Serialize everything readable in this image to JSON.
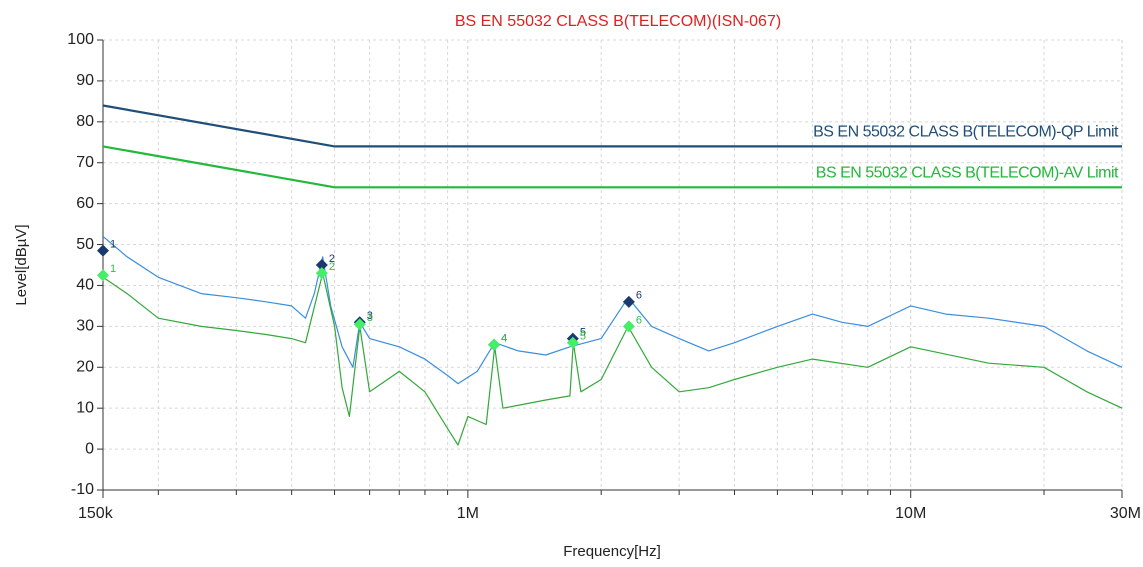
{
  "chart_data": {
    "type": "line",
    "title": "BS EN 55032 CLASS B(TELECOM)(ISN-067)",
    "xlabel": "Frequency[Hz]",
    "ylabel": "Level[dBµV]",
    "xscale": "log",
    "xlim": [
      150000,
      30000000
    ],
    "ylim": [
      -10,
      100
    ],
    "xticks": [
      {
        "value": 150000,
        "label": "150k"
      },
      {
        "value": 1000000,
        "label": "1M"
      },
      {
        "value": 10000000,
        "label": "10M"
      },
      {
        "value": 30000000,
        "label": "30M"
      }
    ],
    "x_minor_grid": [
      200000,
      300000,
      400000,
      500000,
      600000,
      700000,
      800000,
      900000,
      2000000,
      3000000,
      4000000,
      5000000,
      6000000,
      7000000,
      8000000,
      9000000,
      20000000
    ],
    "yticks": [
      -10,
      0,
      10,
      20,
      30,
      40,
      50,
      60,
      70,
      80,
      90,
      100
    ],
    "grid": true,
    "series": [
      {
        "name": "BS EN 55032 CLASS B(TELECOM)-QP Limit",
        "color": "#1f4e79",
        "width": 2.2,
        "x": [
          150000,
          500000,
          30000000
        ],
        "values": [
          84,
          74,
          74
        ]
      },
      {
        "name": "BS EN 55032 CLASS B(TELECOM)-AV Limit",
        "color": "#22b83a",
        "width": 2.2,
        "x": [
          150000,
          500000,
          30000000
        ],
        "values": [
          74,
          64,
          64
        ]
      },
      {
        "color": "#3a8ee0",
        "width": 1.2,
        "x": [
          150000,
          170000,
          200000,
          250000,
          300000,
          350000,
          400000,
          430000,
          450000,
          470000,
          490000,
          520000,
          550000,
          570000,
          600000,
          700000,
          800000,
          900000,
          950000,
          1050000,
          1150000,
          1300000,
          1500000,
          1700000,
          2000000,
          2300000,
          2600000,
          3000000,
          3500000,
          4000000,
          5000000,
          6000000,
          7000000,
          8000000,
          10000000,
          12000000,
          15000000,
          20000000,
          25000000,
          30000000
        ],
        "values": [
          52,
          47,
          42,
          38,
          37,
          36,
          35,
          32,
          38,
          47,
          35,
          25,
          20,
          31,
          27,
          25,
          22,
          18,
          16,
          19,
          26,
          24,
          23,
          25,
          27,
          37,
          30,
          27,
          24,
          26,
          30,
          33,
          31,
          30,
          35,
          33,
          32,
          30,
          24,
          20
        ]
      },
      {
        "color": "#33a83a",
        "width": 1.2,
        "x": [
          150000,
          170000,
          200000,
          250000,
          300000,
          350000,
          400000,
          430000,
          470000,
          500000,
          520000,
          540000,
          570000,
          600000,
          700000,
          800000,
          900000,
          950000,
          1000000,
          1100000,
          1150000,
          1200000,
          1500000,
          1700000,
          1730000,
          1800000,
          2000000,
          2300000,
          2600000,
          3000000,
          3500000,
          4000000,
          5000000,
          6000000,
          8000000,
          10000000,
          15000000,
          20000000,
          25000000,
          30000000
        ],
        "values": [
          42,
          38,
          32,
          30,
          29,
          28,
          27,
          26,
          43,
          30,
          15,
          8,
          30,
          14,
          19,
          14,
          5,
          1,
          8,
          6,
          25,
          10,
          12,
          13,
          26,
          14,
          17,
          30,
          20,
          14,
          15,
          17,
          20,
          22,
          20,
          25,
          21,
          20,
          14,
          10
        ]
      }
    ],
    "markers": {
      "labels": [
        "1",
        "2",
        "3",
        "4",
        "5",
        "6"
      ],
      "x": [
        150000,
        468000,
        570000,
        1146000,
        1726000,
        2310000
      ],
      "qp": [
        48.5,
        45,
        31,
        25.5,
        27,
        36
      ],
      "av": [
        42.5,
        43,
        30.5,
        25.5,
        26,
        30
      ],
      "qp_color": "#1a3a6e",
      "av_color": "#44ee66"
    }
  }
}
